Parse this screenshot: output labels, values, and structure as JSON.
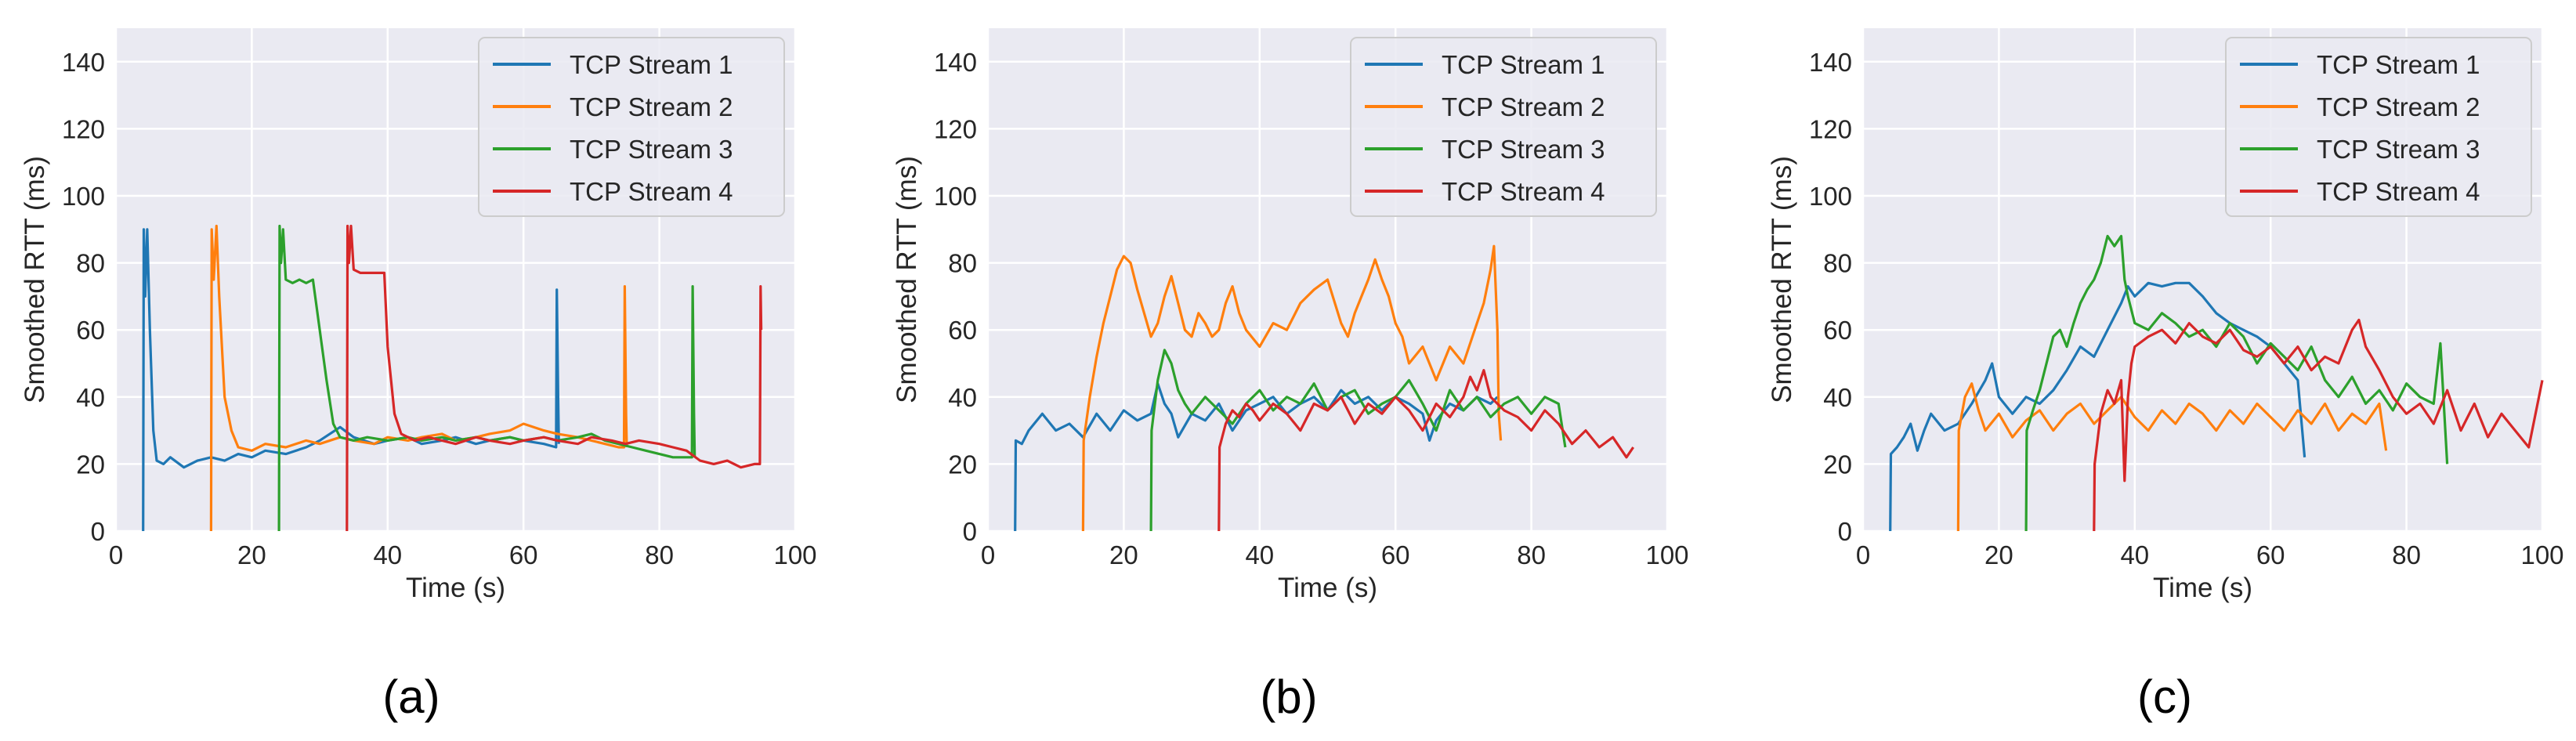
{
  "figure": {
    "captions": [
      "(a)",
      "(b)",
      "(c)"
    ]
  },
  "colors": {
    "panel_bg": "#eaeaf2",
    "grid": "#ffffff",
    "text": "#262626",
    "series": [
      "#1f77b4",
      "#ff7f0e",
      "#2ca02c",
      "#d62728"
    ]
  },
  "chart_data": [
    {
      "type": "line",
      "caption": "(a)",
      "xlabel": "Time (s)",
      "ylabel": "Smoothed RTT (ms)",
      "xlim": [
        0,
        100
      ],
      "ylim": [
        0,
        150
      ],
      "xticks": [
        0,
        20,
        40,
        60,
        80,
        100
      ],
      "yticks": [
        0,
        20,
        40,
        60,
        80,
        100,
        120,
        140
      ],
      "grid": true,
      "legend_position": "top-right",
      "series": [
        {
          "name": "TCP Stream 1",
          "x": [
            4,
            4.1,
            4.3,
            4.6,
            5,
            5.5,
            6,
            7,
            8,
            10,
            12,
            14,
            16,
            18,
            20,
            22,
            25,
            28,
            30,
            33,
            35,
            38,
            40,
            43,
            45,
            48,
            50,
            53,
            55,
            58,
            60,
            63,
            64.8,
            64.9,
            65.1,
            65.2
          ],
          "y": [
            0,
            90,
            70,
            90,
            60,
            30,
            21,
            20,
            22,
            19,
            21,
            22,
            21,
            23,
            22,
            24,
            23,
            25,
            27,
            31,
            28,
            26,
            27,
            28,
            26,
            27,
            28,
            26,
            27,
            28,
            27,
            26,
            25,
            72,
            40,
            26
          ]
        },
        {
          "name": "TCP Stream 2",
          "x": [
            14,
            14.1,
            14.4,
            14.8,
            15.2,
            16,
            17,
            18,
            20,
            22,
            25,
            28,
            30,
            33,
            35,
            38,
            40,
            43,
            45,
            48,
            50,
            53,
            55,
            58,
            60,
            63,
            65,
            68,
            70,
            72,
            74,
            74.8,
            74.9,
            75.1,
            75.2
          ],
          "y": [
            0,
            90,
            75,
            91,
            70,
            40,
            30,
            25,
            24,
            26,
            25,
            27,
            26,
            28,
            27,
            26,
            28,
            27,
            28,
            29,
            27,
            28,
            29,
            30,
            32,
            30,
            29,
            28,
            27,
            26,
            25,
            25,
            73,
            35,
            25
          ]
        },
        {
          "name": "TCP Stream 3",
          "x": [
            24,
            24.1,
            24.3,
            24.6,
            25,
            26,
            27,
            28,
            29,
            30,
            31,
            32,
            33,
            35,
            37,
            40,
            43,
            45,
            48,
            50,
            53,
            55,
            58,
            60,
            63,
            65,
            68,
            70,
            72,
            74,
            76,
            78,
            80,
            82,
            84,
            84.8,
            84.9,
            85.1,
            85.2
          ],
          "y": [
            0,
            91,
            80,
            90,
            75,
            74,
            75,
            74,
            75,
            60,
            45,
            32,
            28,
            27,
            28,
            27,
            28,
            27,
            28,
            27,
            28,
            27,
            28,
            27,
            28,
            27,
            28,
            29,
            27,
            26,
            25,
            24,
            23,
            22,
            22,
            22,
            73,
            35,
            22
          ]
        },
        {
          "name": "TCP Stream 4",
          "x": [
            34,
            34.1,
            34.3,
            34.6,
            35,
            36,
            38,
            39.5,
            40,
            41,
            42,
            44,
            46,
            48,
            50,
            53,
            55,
            58,
            60,
            63,
            65,
            68,
            70,
            73,
            75,
            77,
            80,
            82,
            84,
            86,
            88,
            90,
            92,
            94,
            94.8,
            94.9,
            95
          ],
          "y": [
            0,
            91,
            80,
            91,
            78,
            77,
            77,
            77,
            55,
            35,
            29,
            27,
            28,
            27,
            26,
            28,
            27,
            26,
            27,
            28,
            27,
            26,
            28,
            27,
            26,
            27,
            26,
            25,
            24,
            21,
            20,
            21,
            19,
            20,
            20,
            73,
            60
          ]
        }
      ]
    },
    {
      "type": "line",
      "caption": "(b)",
      "xlabel": "Time (s)",
      "ylabel": "Smoothed RTT (ms)",
      "xlim": [
        0,
        100
      ],
      "ylim": [
        0,
        150
      ],
      "xticks": [
        0,
        20,
        40,
        60,
        80,
        100
      ],
      "yticks": [
        0,
        20,
        40,
        60,
        80,
        100,
        120,
        140
      ],
      "grid": true,
      "legend_position": "top-right",
      "series": [
        {
          "name": "TCP Stream 1",
          "x": [
            4,
            4.1,
            5,
            6,
            8,
            10,
            12,
            14,
            16,
            18,
            20,
            22,
            24,
            25,
            26,
            27,
            28,
            30,
            32,
            34,
            36,
            38,
            40,
            42,
            44,
            46,
            48,
            50,
            52,
            54,
            56,
            58,
            60,
            62,
            64,
            65,
            66,
            68,
            70,
            72,
            74,
            75
          ],
          "y": [
            0,
            27,
            26,
            30,
            35,
            30,
            32,
            28,
            35,
            30,
            36,
            33,
            35,
            44,
            38,
            35,
            28,
            35,
            33,
            38,
            30,
            36,
            38,
            40,
            35,
            38,
            40,
            36,
            42,
            38,
            40,
            36,
            40,
            38,
            35,
            27,
            33,
            38,
            36,
            40,
            38,
            40
          ]
        },
        {
          "name": "TCP Stream 2",
          "x": [
            14,
            14.1,
            15,
            16,
            17,
            18,
            19,
            20,
            21,
            22,
            23,
            24,
            25,
            26,
            27,
            28,
            29,
            30,
            31,
            32,
            33,
            34,
            35,
            36,
            37,
            38,
            40,
            42,
            44,
            46,
            48,
            50,
            52,
            53,
            54,
            55,
            56,
            57,
            58,
            59,
            60,
            61,
            62,
            64,
            66,
            68,
            70,
            72,
            73,
            74,
            74.5,
            75,
            75.2,
            75.5
          ],
          "y": [
            0,
            27,
            40,
            52,
            62,
            70,
            78,
            82,
            80,
            72,
            65,
            58,
            62,
            70,
            76,
            68,
            60,
            58,
            65,
            62,
            58,
            60,
            68,
            73,
            65,
            60,
            55,
            62,
            60,
            68,
            72,
            75,
            62,
            58,
            65,
            70,
            75,
            81,
            75,
            70,
            62,
            58,
            50,
            55,
            45,
            55,
            50,
            62,
            68,
            78,
            85,
            60,
            35,
            27
          ]
        },
        {
          "name": "TCP Stream 3",
          "x": [
            24,
            24.1,
            25,
            26,
            27,
            28,
            29,
            30,
            32,
            34,
            36,
            38,
            40,
            42,
            44,
            46,
            48,
            50,
            52,
            54,
            56,
            58,
            60,
            62,
            64,
            66,
            68,
            70,
            72,
            74,
            76,
            78,
            80,
            82,
            84,
            85
          ],
          "y": [
            0,
            30,
            45,
            54,
            50,
            42,
            38,
            35,
            40,
            36,
            32,
            38,
            42,
            36,
            40,
            38,
            44,
            36,
            40,
            42,
            35,
            38,
            40,
            45,
            38,
            30,
            42,
            36,
            40,
            34,
            38,
            40,
            35,
            40,
            38,
            25
          ]
        },
        {
          "name": "TCP Stream 4",
          "x": [
            34,
            34.1,
            35,
            36,
            37,
            38,
            39,
            40,
            42,
            44,
            46,
            48,
            50,
            52,
            54,
            56,
            58,
            60,
            62,
            64,
            66,
            68,
            70,
            71,
            72,
            73,
            74,
            76,
            78,
            80,
            82,
            84,
            86,
            88,
            90,
            92,
            94,
            95
          ],
          "y": [
            0,
            25,
            32,
            36,
            34,
            38,
            36,
            33,
            38,
            35,
            30,
            38,
            36,
            40,
            32,
            38,
            35,
            40,
            36,
            30,
            38,
            34,
            40,
            46,
            42,
            48,
            40,
            36,
            34,
            30,
            36,
            32,
            26,
            30,
            25,
            28,
            22,
            25
          ]
        }
      ]
    },
    {
      "type": "line",
      "caption": "(c)",
      "xlabel": "Time (s)",
      "ylabel": "Smoothed RTT (ms)",
      "xlim": [
        0,
        100
      ],
      "ylim": [
        0,
        150
      ],
      "xticks": [
        0,
        20,
        40,
        60,
        80,
        100
      ],
      "yticks": [
        0,
        20,
        40,
        60,
        80,
        100,
        120,
        140
      ],
      "grid": true,
      "legend_position": "top-right",
      "series": [
        {
          "name": "TCP Stream 1",
          "x": [
            4,
            4.1,
            5,
            6,
            7,
            8,
            9,
            10,
            12,
            14,
            16,
            18,
            19,
            20,
            22,
            24,
            26,
            28,
            30,
            32,
            34,
            36,
            38,
            39,
            40,
            42,
            44,
            46,
            48,
            50,
            52,
            54,
            56,
            58,
            60,
            62,
            64,
            65
          ],
          "y": [
            0,
            23,
            25,
            28,
            32,
            24,
            30,
            35,
            30,
            32,
            38,
            45,
            50,
            40,
            35,
            40,
            38,
            42,
            48,
            55,
            52,
            60,
            68,
            73,
            70,
            74,
            73,
            74,
            74,
            70,
            65,
            62,
            60,
            58,
            55,
            50,
            45,
            22
          ]
        },
        {
          "name": "TCP Stream 2",
          "x": [
            14,
            14.1,
            15,
            16,
            17,
            18,
            20,
            22,
            24,
            26,
            28,
            30,
            32,
            34,
            36,
            38,
            40,
            42,
            44,
            46,
            48,
            50,
            52,
            54,
            56,
            58,
            60,
            62,
            64,
            66,
            68,
            70,
            72,
            74,
            76,
            77
          ],
          "y": [
            0,
            30,
            40,
            44,
            36,
            30,
            35,
            28,
            33,
            36,
            30,
            35,
            38,
            32,
            36,
            40,
            34,
            30,
            36,
            32,
            38,
            35,
            30,
            36,
            32,
            38,
            34,
            30,
            36,
            32,
            38,
            30,
            35,
            32,
            38,
            24
          ]
        },
        {
          "name": "TCP Stream 3",
          "x": [
            24,
            24.1,
            25,
            26,
            27,
            28,
            29,
            30,
            31,
            32,
            33,
            34,
            35,
            36,
            37,
            38,
            38.5,
            39,
            40,
            42,
            44,
            46,
            48,
            50,
            52,
            54,
            56,
            58,
            60,
            62,
            64,
            66,
            68,
            70,
            72,
            74,
            76,
            78,
            80,
            82,
            84,
            85,
            86
          ],
          "y": [
            0,
            30,
            36,
            42,
            50,
            58,
            60,
            55,
            62,
            68,
            72,
            75,
            80,
            88,
            85,
            88,
            75,
            70,
            62,
            60,
            65,
            62,
            58,
            60,
            55,
            62,
            58,
            50,
            56,
            52,
            48,
            55,
            45,
            40,
            46,
            38,
            42,
            36,
            44,
            40,
            38,
            56,
            20
          ]
        },
        {
          "name": "TCP Stream 4",
          "x": [
            34,
            34.1,
            35,
            36,
            37,
            38,
            38.5,
            39,
            39.5,
            40,
            42,
            44,
            46,
            48,
            50,
            52,
            54,
            56,
            58,
            60,
            62,
            64,
            66,
            68,
            70,
            72,
            73,
            74,
            76,
            78,
            80,
            82,
            84,
            86,
            88,
            90,
            92,
            94,
            96,
            98,
            100
          ],
          "y": [
            0,
            20,
            35,
            42,
            38,
            45,
            15,
            40,
            50,
            55,
            58,
            60,
            56,
            62,
            58,
            56,
            60,
            54,
            52,
            55,
            50,
            55,
            48,
            52,
            50,
            60,
            63,
            55,
            48,
            40,
            35,
            38,
            32,
            42,
            30,
            38,
            28,
            35,
            30,
            25,
            45
          ]
        }
      ]
    }
  ]
}
